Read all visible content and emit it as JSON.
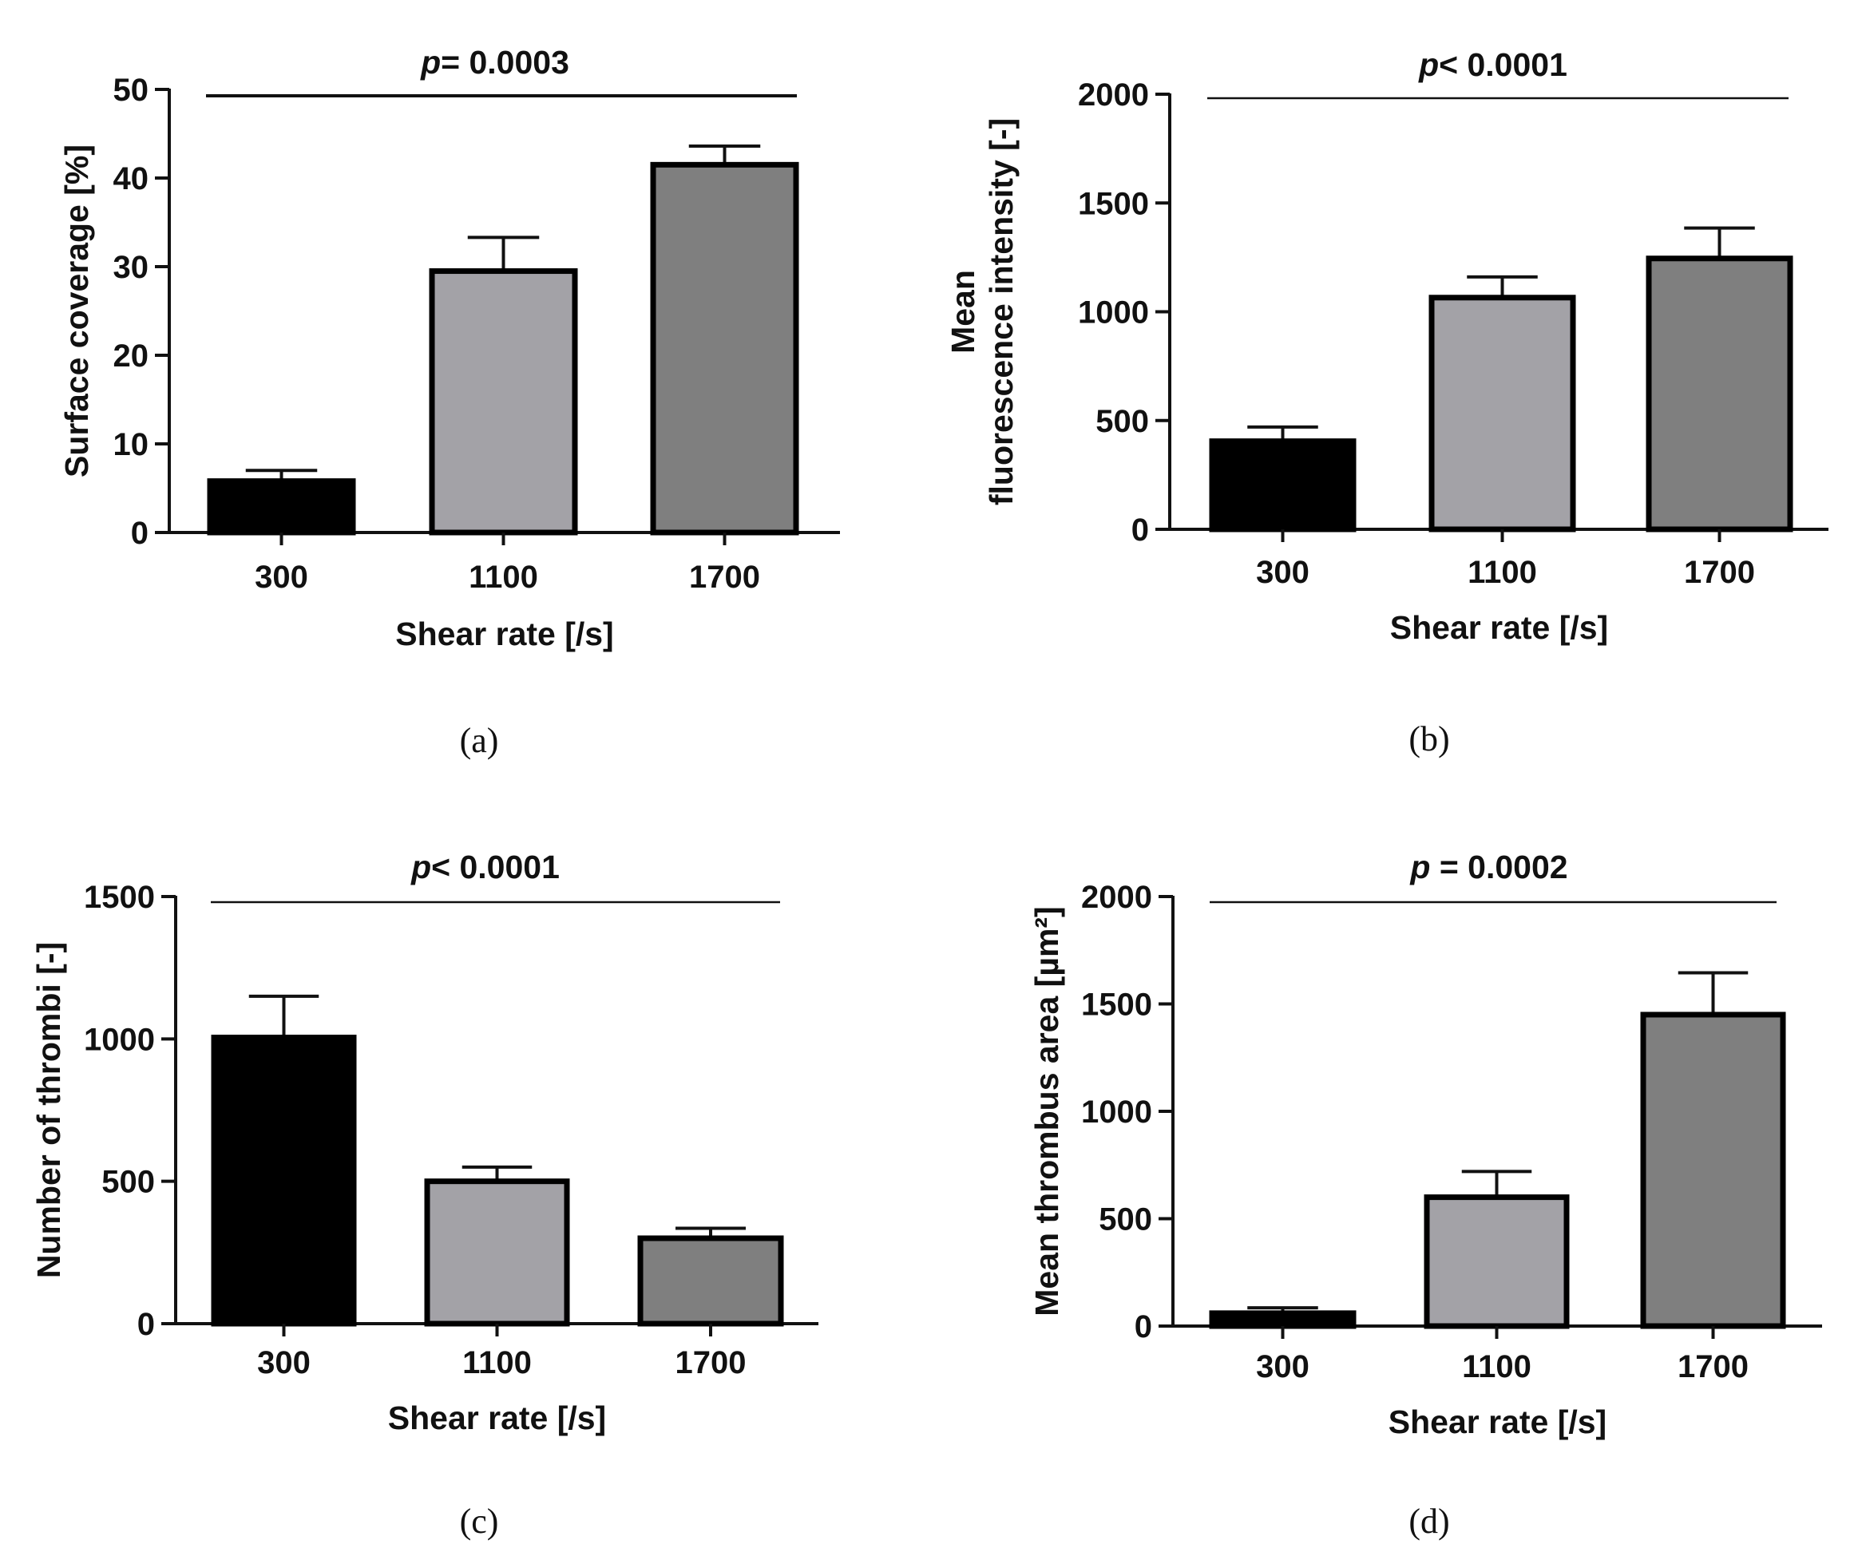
{
  "chart_data": [
    {
      "type": "bar",
      "panel_label": "(a)",
      "categories": [
        "300",
        "1100",
        "1700"
      ],
      "values": [
        5.8,
        29.5,
        41.5
      ],
      "error_upper": [
        7.0,
        33.3,
        43.6
      ],
      "colors": [
        "#000000",
        "#a3a2a7",
        "#7f7f7f"
      ],
      "xlabel": "Shear rate [/s]",
      "ylabel": [
        "Surface coverage [%]"
      ],
      "ylim": [
        0,
        50
      ],
      "yticks": [
        0,
        10,
        20,
        30,
        40,
        50
      ],
      "annotation": {
        "p_symbol": "p",
        "text": "= 0.0003"
      }
    },
    {
      "type": "bar",
      "panel_label": "(b)",
      "categories": [
        "300",
        "1100",
        "1700"
      ],
      "values": [
        405,
        1065,
        1245
      ],
      "error_upper": [
        470,
        1160,
        1385
      ],
      "colors": [
        "#000000",
        "#a3a2a7",
        "#7f7f7f"
      ],
      "xlabel": "Shear rate [/s]",
      "ylabel": [
        "Mean",
        "fluorescence intensity [-]"
      ],
      "ylim": [
        0,
        2000
      ],
      "yticks": [
        0,
        500,
        1000,
        1500,
        2000
      ],
      "annotation": {
        "p_symbol": "p",
        "text": "< 0.0001"
      }
    },
    {
      "type": "bar",
      "panel_label": "(c)",
      "categories": [
        "300",
        "1100",
        "1700"
      ],
      "values": [
        1005,
        500,
        300
      ],
      "error_upper": [
        1150,
        550,
        335
      ],
      "colors": [
        "#000000",
        "#a3a2a7",
        "#7f7f7f"
      ],
      "xlabel": "Shear rate [/s]",
      "ylabel": [
        "Number of thrombi [-]"
      ],
      "ylim": [
        0,
        1500
      ],
      "yticks": [
        0,
        500,
        1000,
        1500
      ],
      "annotation": {
        "p_symbol": "p",
        "text": "< 0.0001"
      }
    },
    {
      "type": "bar",
      "panel_label": "(d)",
      "categories": [
        "300",
        "1100",
        "1700"
      ],
      "values": [
        60,
        600,
        1450
      ],
      "error_upper": [
        85,
        720,
        1645
      ],
      "colors": [
        "#000000",
        "#a3a2a7",
        "#7f7f7f"
      ],
      "xlabel": "Shear rate [/s]",
      "ylabel": [
        "Mean thrombus area [µm²]"
      ],
      "ylim": [
        0,
        2000
      ],
      "yticks": [
        0,
        500,
        1000,
        1500,
        2000
      ],
      "annotation": {
        "p_symbol": "p",
        "text": " = 0.0002"
      }
    }
  ]
}
